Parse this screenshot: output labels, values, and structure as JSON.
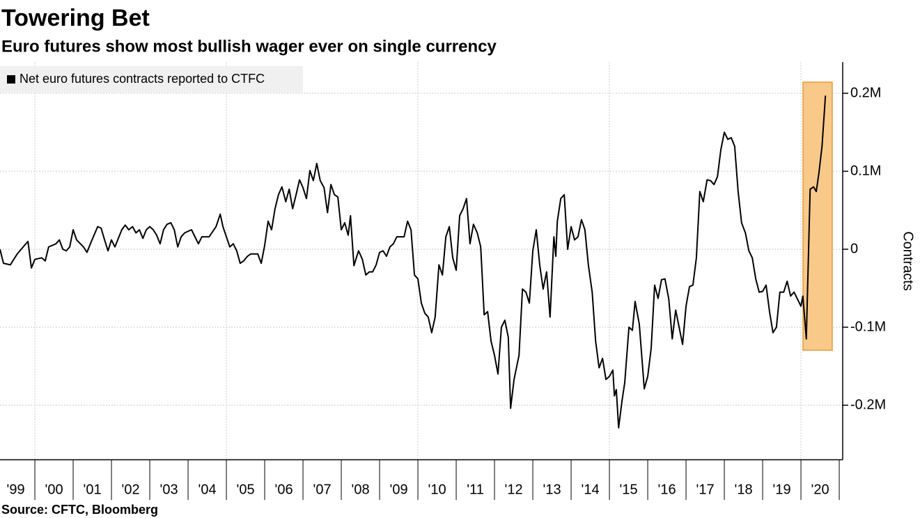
{
  "chart_data": {
    "type": "line",
    "title": "Towering Bet",
    "subtitle": "Euro futures show most bullish wager ever on single currency",
    "source": "Source: CFTC, Bloomberg",
    "y_label": "Contracts",
    "y_axis_side": "right",
    "grid": true,
    "legend": "top-left",
    "xlim": [
      1999.09,
      2021.09
    ],
    "ylim": [
      -270000,
      240000
    ],
    "xticks": [
      {
        "value": 1999.5,
        "label": "'99"
      },
      {
        "value": 2000.5,
        "label": "'00"
      },
      {
        "value": 2001.5,
        "label": "'01"
      },
      {
        "value": 2002.5,
        "label": "'02"
      },
      {
        "value": 2003.5,
        "label": "'03"
      },
      {
        "value": 2004.5,
        "label": "'04"
      },
      {
        "value": 2005.5,
        "label": "'05"
      },
      {
        "value": 2006.5,
        "label": "'06"
      },
      {
        "value": 2007.5,
        "label": "'07"
      },
      {
        "value": 2008.5,
        "label": "'08"
      },
      {
        "value": 2009.5,
        "label": "'09"
      },
      {
        "value": 2010.5,
        "label": "'10"
      },
      {
        "value": 2011.5,
        "label": "'11"
      },
      {
        "value": 2012.5,
        "label": "'12"
      },
      {
        "value": 2013.5,
        "label": "'13"
      },
      {
        "value": 2014.5,
        "label": "'14"
      },
      {
        "value": 2015.5,
        "label": "'15"
      },
      {
        "value": 2016.5,
        "label": "'16"
      },
      {
        "value": 2017.5,
        "label": "'17"
      },
      {
        "value": 2018.5,
        "label": "'18"
      },
      {
        "value": 2019.5,
        "label": "'19"
      },
      {
        "value": 2020.5,
        "label": "'20"
      }
    ],
    "yticks": [
      {
        "value": 200000,
        "label": "0.2M"
      },
      {
        "value": 100000,
        "label": "0.1M"
      },
      0,
      {
        "value": -100000,
        "label": "-0.1M"
      },
      {
        "value": -200000,
        "label": "-0.2M"
      }
    ],
    "x": [
      1999.09,
      1999.18,
      1999.36,
      1999.54,
      1999.73,
      1999.82,
      1999.91,
      2000.0,
      2000.18,
      2000.27,
      2000.36,
      2000.55,
      2000.64,
      2000.73,
      2000.82,
      2000.91,
      2001.0,
      2001.09,
      2001.27,
      2001.36,
      2001.45,
      2001.64,
      2001.73,
      2001.82,
      2001.91,
      2002.0,
      2002.09,
      2002.27,
      2002.36,
      2002.45,
      2002.55,
      2002.64,
      2002.73,
      2002.82,
      2002.91,
      2003.0,
      2003.09,
      2003.18,
      2003.27,
      2003.36,
      2003.45,
      2003.55,
      2003.64,
      2003.73,
      2003.82,
      2003.91,
      2004.09,
      2004.27,
      2004.36,
      2004.55,
      2004.73,
      2004.84,
      2004.91,
      2005.0,
      2005.09,
      2005.18,
      2005.27,
      2005.36,
      2005.45,
      2005.55,
      2005.64,
      2005.82,
      2005.91,
      2006.0,
      2006.09,
      2006.18,
      2006.27,
      2006.36,
      2006.45,
      2006.55,
      2006.64,
      2006.73,
      2006.82,
      2006.91,
      2007.0,
      2007.09,
      2007.18,
      2007.27,
      2007.36,
      2007.45,
      2007.55,
      2007.64,
      2007.73,
      2007.82,
      2007.91,
      2008.0,
      2008.09,
      2008.18,
      2008.24,
      2008.33,
      2008.45,
      2008.55,
      2008.64,
      2008.73,
      2008.82,
      2008.91,
      2009.0,
      2009.09,
      2009.18,
      2009.27,
      2009.36,
      2009.45,
      2009.55,
      2009.64,
      2009.73,
      2009.82,
      2009.91,
      2010.0,
      2010.09,
      2010.18,
      2010.27,
      2010.36,
      2010.45,
      2010.55,
      2010.64,
      2010.73,
      2010.82,
      2010.91,
      2011.0,
      2011.09,
      2011.18,
      2011.27,
      2011.36,
      2011.45,
      2011.55,
      2011.64,
      2011.73,
      2011.82,
      2011.91,
      2012.0,
      2012.09,
      2012.18,
      2012.27,
      2012.36,
      2012.42,
      2012.51,
      2012.64,
      2012.73,
      2012.82,
      2012.91,
      2013.0,
      2013.09,
      2013.18,
      2013.27,
      2013.36,
      2013.45,
      2013.55,
      2013.6,
      2013.64,
      2013.73,
      2013.82,
      2013.91,
      2014.0,
      2014.09,
      2014.18,
      2014.27,
      2014.36,
      2014.45,
      2014.55,
      2014.64,
      2014.73,
      2014.82,
      2014.91,
      2015.0,
      2015.09,
      2015.13,
      2015.18,
      2015.24,
      2015.33,
      2015.4,
      2015.51,
      2015.6,
      2015.67,
      2015.78,
      2015.91,
      2016.0,
      2016.09,
      2016.18,
      2016.27,
      2016.36,
      2016.45,
      2016.55,
      2016.64,
      2016.73,
      2016.82,
      2016.91,
      2017.0,
      2017.09,
      2017.18,
      2017.27,
      2017.36,
      2017.45,
      2017.55,
      2017.64,
      2017.73,
      2017.82,
      2017.91,
      2018.0,
      2018.09,
      2018.18,
      2018.27,
      2018.36,
      2018.45,
      2018.55,
      2018.64,
      2018.73,
      2018.82,
      2018.91,
      2019.0,
      2019.09,
      2019.18,
      2019.27,
      2019.36,
      2019.45,
      2019.55,
      2019.64,
      2019.73,
      2019.82,
      2019.91,
      2020.0,
      2020.05,
      2020.14,
      2020.24,
      2020.33,
      2020.4,
      2020.47,
      2020.55,
      2020.64
    ],
    "series": [
      {
        "name": "Net euro futures contracts reported to CTFC",
        "color": "#000000",
        "values": [
          0,
          -18000,
          -20000,
          -6000,
          5000,
          10000,
          -24000,
          -13000,
          -11000,
          -15000,
          3000,
          7000,
          12000,
          0,
          -2000,
          3000,
          25000,
          12000,
          3000,
          -4000,
          7000,
          29000,
          27000,
          12000,
          -2000,
          12000,
          3000,
          25000,
          31000,
          25000,
          29000,
          21000,
          25000,
          14000,
          25000,
          29000,
          25000,
          18000,
          7000,
          25000,
          32000,
          34000,
          25000,
          3000,
          16000,
          21000,
          25000,
          7000,
          16000,
          16000,
          29000,
          45000,
          29000,
          16000,
          3000,
          7000,
          -2000,
          -18000,
          -15000,
          -9000,
          -6000,
          -6000,
          -18000,
          5000,
          36000,
          25000,
          52000,
          70000,
          80000,
          61000,
          77000,
          52000,
          70000,
          89000,
          79000,
          65000,
          101000,
          88000,
          110000,
          88000,
          79000,
          47000,
          83000,
          70000,
          67000,
          25000,
          34000,
          18000,
          43000,
          -21000,
          -2000,
          -13000,
          -33000,
          -29000,
          -29000,
          -20000,
          -4000,
          -2000,
          -9000,
          3000,
          7000,
          16000,
          16000,
          16000,
          36000,
          25000,
          -33000,
          -38000,
          -69000,
          -82000,
          -87000,
          -107000,
          -87000,
          -20000,
          -33000,
          16000,
          29000,
          -11000,
          -27000,
          43000,
          52000,
          65000,
          7000,
          32000,
          21000,
          3000,
          -84000,
          -80000,
          -118000,
          -136000,
          -160000,
          -100000,
          -91000,
          -113000,
          -204000,
          -167000,
          -136000,
          -51000,
          -55000,
          -69000,
          -2000,
          25000,
          -20000,
          -51000,
          -29000,
          -87000,
          16000,
          -9000,
          36000,
          65000,
          70000,
          0,
          29000,
          12000,
          16000,
          38000,
          25000,
          -20000,
          -55000,
          -118000,
          -152000,
          -140000,
          -167000,
          -163000,
          -155000,
          -188000,
          -180000,
          -229000,
          -194000,
          -171000,
          -100000,
          -104000,
          -67000,
          -96000,
          -179000,
          -163000,
          -127000,
          -46000,
          -63000,
          -39000,
          -38000,
          -64000,
          -115000,
          -78000,
          -100000,
          -122000,
          -73000,
          -48000,
          -46000,
          -11000,
          74000,
          61000,
          89000,
          88000,
          83000,
          93000,
          128000,
          150000,
          141000,
          143000,
          132000,
          74000,
          34000,
          21000,
          -2000,
          -11000,
          -38000,
          -55000,
          -54000,
          -46000,
          -80000,
          -107000,
          -100000,
          -55000,
          -55000,
          -41000,
          -60000,
          -55000,
          -64000,
          -73000,
          -60000,
          -115000,
          77000,
          80000,
          74000,
          98000,
          132000,
          197000
        ]
      }
    ]
  }
}
